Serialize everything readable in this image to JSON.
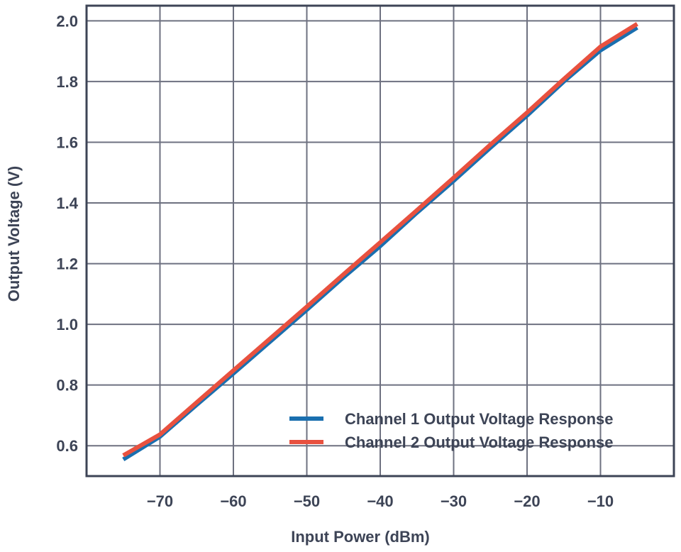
{
  "chart_data": {
    "type": "line",
    "title": "",
    "xlabel": "Input Power (dBm)",
    "ylabel": "Output Voltage (V)",
    "xlim": [
      -80,
      0
    ],
    "ylim": [
      0.5,
      2.05
    ],
    "x_ticks": [
      -70,
      -60,
      -50,
      -40,
      -30,
      -20,
      -10
    ],
    "x_tick_labels": [
      "−70",
      "−60",
      "−50",
      "−40",
      "−30",
      "−20",
      "−10"
    ],
    "y_ticks": [
      0.6,
      0.8,
      1.0,
      1.2,
      1.4,
      1.6,
      1.8,
      2.0
    ],
    "y_tick_labels": [
      "0.6",
      "0.8",
      "1.0",
      "1.2",
      "1.4",
      "1.6",
      "1.8",
      "2.0"
    ],
    "grid": true,
    "legend_position": "bottom-right",
    "series": [
      {
        "name": "Channel 1 Output Voltage Response",
        "color": "#1a6faf",
        "x": [
          -75,
          -70,
          -65,
          -60,
          -55,
          -50,
          -45,
          -40,
          -35,
          -30,
          -25,
          -20,
          -15,
          -10,
          -5
        ],
        "y": [
          0.555,
          0.63,
          0.735,
          0.838,
          0.943,
          1.048,
          1.155,
          1.258,
          1.368,
          1.473,
          1.582,
          1.688,
          1.8,
          1.903,
          1.978
        ]
      },
      {
        "name": "Channel 2 Output Voltage Response",
        "color": "#e8513f",
        "x": [
          -75,
          -70,
          -65,
          -60,
          -55,
          -50,
          -45,
          -40,
          -35,
          -30,
          -25,
          -20,
          -15,
          -10,
          -5
        ],
        "y": [
          0.568,
          0.637,
          0.743,
          0.848,
          0.953,
          1.058,
          1.165,
          1.27,
          1.376,
          1.483,
          1.592,
          1.698,
          1.808,
          1.915,
          1.99
        ]
      }
    ]
  }
}
